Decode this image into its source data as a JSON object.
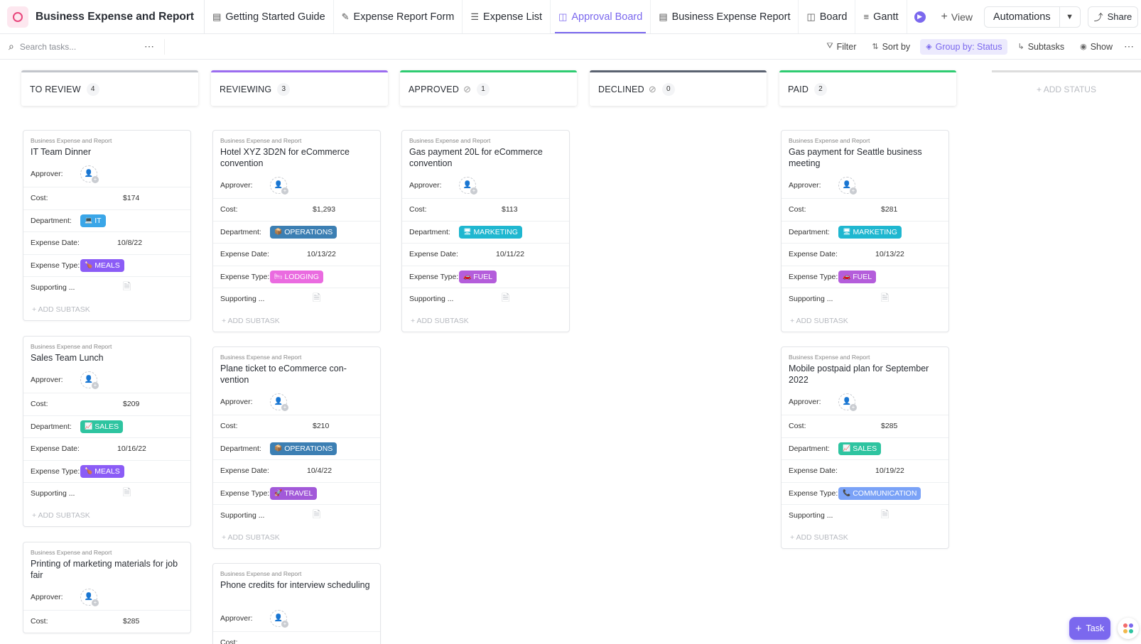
{
  "header": {
    "title": "Business Expense and Report",
    "tabs": [
      {
        "label": "Getting Started Guide",
        "icon": "doc-icon",
        "glyph": "▤",
        "active": false
      },
      {
        "label": "Expense Report Form",
        "icon": "form-icon",
        "glyph": "✎",
        "active": false
      },
      {
        "label": "Expense List",
        "icon": "list-icon",
        "glyph": "☰",
        "active": false
      },
      {
        "label": "Approval Board",
        "icon": "board-icon",
        "glyph": "◫",
        "active": true
      },
      {
        "label": "Business Expense Report",
        "icon": "doc-icon",
        "glyph": "▤",
        "active": false
      },
      {
        "label": "Board",
        "icon": "board-icon",
        "glyph": "◫",
        "active": false
      },
      {
        "label": "Gantt",
        "icon": "gantt-icon",
        "glyph": "≡",
        "active": false
      }
    ],
    "view_label": "View",
    "automations_label": "Automations",
    "share_label": "Share"
  },
  "toolbar": {
    "search_placeholder": "Search tasks...",
    "filter_label": "Filter",
    "sort_label": "Sort by",
    "group_label": "Group by: Status",
    "subtasks_label": "Subtasks",
    "show_label": "Show"
  },
  "labels": {
    "list_name": "Business Expense and Report",
    "approver": "Approver:",
    "cost": "Cost:",
    "department": "Department:",
    "expense_date": "Expense Date:",
    "expense_type": "Expense Type:",
    "supporting": "Supporting ...",
    "add_subtask": "+ ADD SUBTASK",
    "add_status": "+ ADD STATUS",
    "task_button": "Task"
  },
  "colors": {
    "accent": "#7b68ee",
    "IT": "#3aa6e8",
    "SALES": "#2ec4a0",
    "OPERATIONS": "#3c7fb3",
    "MARKETING": "#1fb7d0",
    "MEALS": "#8b5cf6",
    "LODGING": "#ea6be0",
    "FUEL": "#b45ddb",
    "TRAVEL": "#a259d9",
    "COMMUNICATION": "#7aa2f7"
  },
  "columns": [
    {
      "name": "TO REVIEW",
      "count": "4",
      "color": "#c2c5cb",
      "check": false,
      "cards": [
        {
          "title": "IT Team Dinner",
          "cost": "$174",
          "department": "IT",
          "dept_icon": "💻",
          "date": "10/8/22",
          "type": "MEALS",
          "type_icon": "🍗"
        },
        {
          "title": "Sales Team Lunch",
          "cost": "$209",
          "department": "SALES",
          "dept_icon": "📈",
          "date": "10/16/22",
          "type": "MEALS",
          "type_icon": "🍗"
        },
        {
          "title": "Printing of marketing materials for job fair",
          "cost": "$285",
          "department": "",
          "dept_icon": "",
          "date": "",
          "type": "",
          "type_icon": ""
        }
      ]
    },
    {
      "name": "REVIEWING",
      "count": "3",
      "color": "#9b6cf0",
      "check": false,
      "cards": [
        {
          "title": "Hotel XYZ 3D2N for eCommerce convention",
          "cost": "$1,293",
          "department": "OPERATIONS",
          "dept_icon": "📦",
          "date": "10/13/22",
          "type": "LODGING",
          "type_icon": "🛏"
        },
        {
          "title": "Plane ticket to eCommerce con-vention",
          "cost": "$210",
          "department": "OPERATIONS",
          "dept_icon": "📦",
          "date": "10/4/22",
          "type": "TRAVEL",
          "type_icon": "🚀"
        },
        {
          "title": "Phone credits for interview scheduling",
          "cost": "",
          "department": "",
          "dept_icon": "",
          "date": "",
          "type": "",
          "type_icon": ""
        }
      ]
    },
    {
      "name": "APPROVED",
      "count": "1",
      "color": "#2ecc71",
      "check": true,
      "cards": [
        {
          "title": "Gas payment 20L for eCommerce convention",
          "cost": "$113",
          "department": "MARKETING",
          "dept_icon": "🖥",
          "date": "10/11/22",
          "type": "FUEL",
          "type_icon": "🚗"
        }
      ]
    },
    {
      "name": "DECLINED",
      "count": "0",
      "color": "#5a6270",
      "check": true,
      "cards": []
    },
    {
      "name": "PAID",
      "count": "2",
      "color": "#2ecc71",
      "check": false,
      "cards": [
        {
          "title": "Gas payment for Seattle business meeting",
          "cost": "$281",
          "department": "MARKETING",
          "dept_icon": "🖥",
          "date": "10/13/22",
          "type": "FUEL",
          "type_icon": "🚗"
        },
        {
          "title": "Mobile postpaid plan for September 2022",
          "cost": "$285",
          "department": "SALES",
          "dept_icon": "📈",
          "date": "10/19/22",
          "type": "COMMUNICATION",
          "type_icon": "📞"
        }
      ]
    }
  ]
}
